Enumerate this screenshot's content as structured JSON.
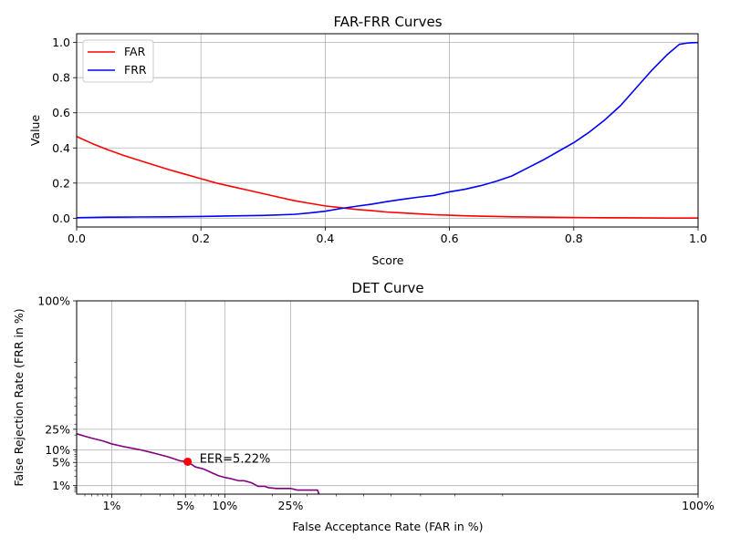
{
  "chart_data": [
    {
      "type": "line",
      "title": "FAR-FRR Curves",
      "xlabel": "Score",
      "ylabel": "Value",
      "xlim": [
        0,
        1
      ],
      "ylim": [
        -0.05,
        1.05
      ],
      "xticks": [
        "0.0",
        "0.2",
        "0.4",
        "0.6",
        "0.8",
        "1.0"
      ],
      "yticks": [
        "0.0",
        "0.2",
        "0.4",
        "0.6",
        "0.8",
        "1.0"
      ],
      "grid": true,
      "legend_position": "top-left",
      "series": [
        {
          "name": "FAR",
          "color": "#ff0000",
          "x": [
            0.0,
            0.025,
            0.05,
            0.075,
            0.1,
            0.125,
            0.15,
            0.175,
            0.2,
            0.225,
            0.25,
            0.275,
            0.3,
            0.325,
            0.35,
            0.375,
            0.4,
            0.425,
            0.45,
            0.475,
            0.5,
            0.525,
            0.55,
            0.575,
            0.6,
            0.625,
            0.65,
            0.675,
            0.7,
            0.75,
            0.8,
            0.85,
            0.9,
            0.95,
            1.0
          ],
          "y": [
            0.465,
            0.425,
            0.39,
            0.358,
            0.33,
            0.302,
            0.275,
            0.25,
            0.225,
            0.2,
            0.18,
            0.16,
            0.14,
            0.12,
            0.1,
            0.085,
            0.07,
            0.06,
            0.05,
            0.043,
            0.035,
            0.03,
            0.025,
            0.02,
            0.017,
            0.014,
            0.012,
            0.01,
            0.008,
            0.006,
            0.004,
            0.003,
            0.002,
            0.001,
            0.001
          ]
        },
        {
          "name": "FRR",
          "color": "#0000ff",
          "x": [
            0.0,
            0.05,
            0.1,
            0.15,
            0.2,
            0.25,
            0.3,
            0.35,
            0.375,
            0.4,
            0.425,
            0.45,
            0.475,
            0.5,
            0.525,
            0.55,
            0.575,
            0.6,
            0.625,
            0.65,
            0.675,
            0.7,
            0.725,
            0.75,
            0.775,
            0.8,
            0.825,
            0.85,
            0.875,
            0.9,
            0.925,
            0.95,
            0.97,
            0.985,
            1.0
          ],
          "y": [
            0.003,
            0.006,
            0.007,
            0.008,
            0.01,
            0.013,
            0.016,
            0.022,
            0.03,
            0.04,
            0.055,
            0.068,
            0.08,
            0.095,
            0.108,
            0.12,
            0.13,
            0.15,
            0.165,
            0.185,
            0.21,
            0.24,
            0.285,
            0.33,
            0.38,
            0.43,
            0.49,
            0.56,
            0.64,
            0.74,
            0.84,
            0.93,
            0.99,
            0.998,
            1.0
          ]
        }
      ]
    },
    {
      "type": "line",
      "title": "DET Curve",
      "xlabel": "False Acceptance Rate (FAR in %)",
      "ylabel": "False Rejection Rate (FRR in %)",
      "xscale": "probit",
      "yscale": "probit",
      "xlim": [
        0.4,
        100
      ],
      "ylim": [
        0.5,
        100
      ],
      "xticks": [
        "1%",
        "5%",
        "10%",
        "25%",
        "100%"
      ],
      "yticks": [
        "1%",
        "5%",
        "10%",
        "25%",
        "100%"
      ],
      "grid": true,
      "series": [
        {
          "name": "",
          "color": "#800080",
          "x": [
            0.4,
            0.5,
            0.6,
            0.8,
            1.0,
            1.3,
            1.6,
            2.0,
            2.5,
            3.0,
            3.5,
            4.0,
            4.5,
            5.22,
            6.0,
            7.0,
            8.0,
            9.0,
            10.0,
            11.0,
            12.5,
            13.5,
            15.0,
            16.5,
            18.0,
            19.0,
            21.0,
            23.0,
            25.0,
            27.0,
            29.0,
            31.5,
            33.5,
            34.0
          ],
          "y": [
            21.0,
            19.0,
            17.5,
            15.5,
            13.5,
            12.0,
            11.0,
            10.0,
            8.8,
            7.8,
            7.0,
            6.2,
            5.5,
            5.22,
            3.8,
            3.3,
            2.6,
            2.1,
            1.85,
            1.7,
            1.45,
            1.45,
            1.25,
            0.95,
            0.95,
            0.85,
            0.8,
            0.8,
            0.8,
            0.7,
            0.7,
            0.7,
            0.7,
            0.5
          ]
        }
      ],
      "eer": {
        "x": 5.22,
        "y": 5.22,
        "label": "EER=5.22%",
        "color": "#ff0000"
      }
    }
  ]
}
